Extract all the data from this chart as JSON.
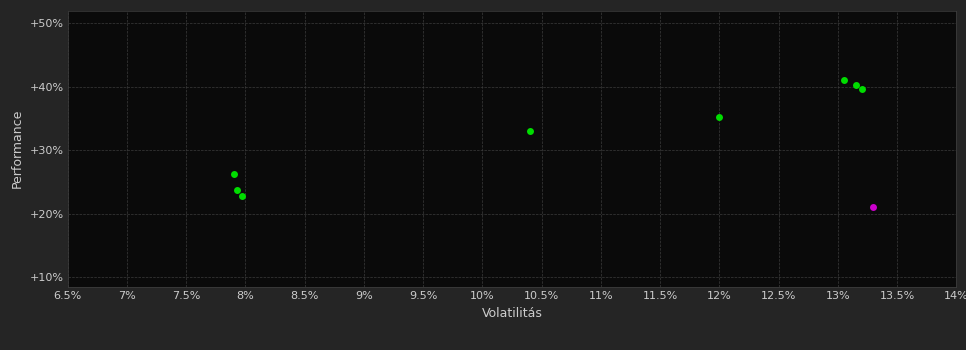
{
  "background_color": "#252525",
  "plot_bg_color": "#0a0a0a",
  "grid_color": "#404040",
  "text_color": "#cccccc",
  "xlabel": "Volatilitás",
  "ylabel": "Performance",
  "xlim": [
    0.065,
    0.14
  ],
  "ylim": [
    0.085,
    0.52
  ],
  "xticks": [
    0.065,
    0.07,
    0.075,
    0.08,
    0.085,
    0.09,
    0.095,
    0.1,
    0.105,
    0.11,
    0.115,
    0.12,
    0.125,
    0.13,
    0.135,
    0.14
  ],
  "xtick_labels": [
    "6.5%",
    "7%",
    "7.5%",
    "8%",
    "8.5%",
    "9%",
    "9.5%",
    "10%",
    "10.5%",
    "11%",
    "11.5%",
    "12%",
    "12.5%",
    "13%",
    "13.5%",
    "14%"
  ],
  "yticks": [
    0.1,
    0.2,
    0.3,
    0.4,
    0.5
  ],
  "ytick_labels": [
    "+10%",
    "+20%",
    "+30%",
    "+40%",
    "+50%"
  ],
  "green_points": [
    [
      0.079,
      0.263
    ],
    [
      0.0793,
      0.237
    ],
    [
      0.0797,
      0.228
    ],
    [
      0.104,
      0.33
    ],
    [
      0.12,
      0.352
    ],
    [
      0.1305,
      0.41
    ],
    [
      0.1315,
      0.403
    ],
    [
      0.132,
      0.396
    ]
  ],
  "magenta_points": [
    [
      0.133,
      0.211
    ]
  ],
  "green_color": "#00dd00",
  "magenta_color": "#cc00cc",
  "marker_size": 25,
  "font_size_ticks": 8,
  "font_size_labels": 9
}
